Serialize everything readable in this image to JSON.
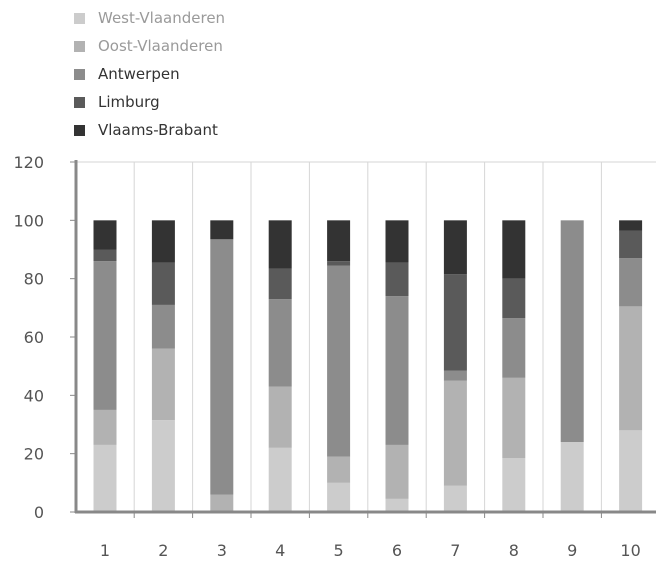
{
  "chart_data": {
    "type": "bar",
    "stacked": true,
    "categories": [
      "1",
      "2",
      "3",
      "4",
      "5",
      "6",
      "7",
      "8",
      "9",
      "10"
    ],
    "series": [
      {
        "name": "West-Vlaanderen",
        "color": "#cccccc",
        "values": [
          23,
          31.5,
          0,
          22,
          10,
          4.5,
          9,
          18.5,
          24,
          28
        ]
      },
      {
        "name": "Oost-Vlaanderen",
        "color": "#b2b2b2",
        "values": [
          12,
          24.5,
          6,
          21,
          9,
          18.5,
          36,
          27.5,
          0,
          42.5
        ]
      },
      {
        "name": "Antwerpen",
        "color": "#8c8c8c",
        "values": [
          51,
          15,
          87.5,
          30,
          65.5,
          51,
          3.5,
          20.5,
          76,
          16.5
        ]
      },
      {
        "name": "Limburg",
        "color": "#5a5a5a",
        "values": [
          4,
          14.5,
          0,
          10.5,
          1.5,
          11.5,
          33,
          13.5,
          0,
          9.5
        ]
      },
      {
        "name": "Vlaams-Brabant",
        "color": "#333333",
        "values": [
          10,
          14.5,
          6.5,
          16.5,
          14,
          14.5,
          18.5,
          20,
          0,
          3.5
        ]
      }
    ],
    "ylim": [
      0,
      120
    ],
    "yticks": [
      "0",
      "20",
      "40",
      "60",
      "80",
      "100",
      "120"
    ],
    "grid": "vertical",
    "legend": "top-left"
  }
}
